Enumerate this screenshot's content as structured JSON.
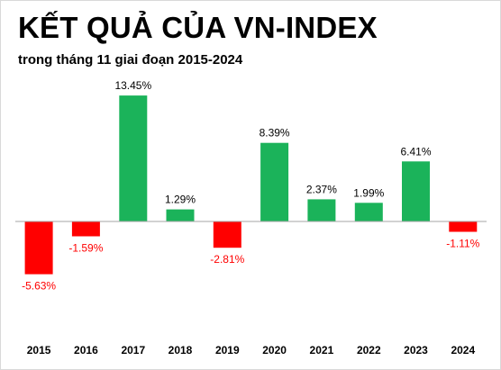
{
  "title": "KẾT QUẢ CỦA VN-INDEX",
  "subtitle": "trong tháng 11 giai đoạn 2015-2024",
  "colors": {
    "positive": "#1bb35a",
    "negative": "#ff0000",
    "axis": "#a6a6a6",
    "label_positive": "#000000",
    "label_negative": "#ff0000"
  },
  "chart_data": {
    "type": "bar",
    "categories": [
      "2015",
      "2016",
      "2017",
      "2018",
      "2019",
      "2020",
      "2021",
      "2022",
      "2023",
      "2024"
    ],
    "values": [
      -5.63,
      -1.59,
      13.45,
      1.29,
      -2.81,
      8.39,
      2.37,
      1.99,
      6.41,
      -1.11
    ],
    "data_labels": [
      "-5.63%",
      "-1.59%",
      "13.45%",
      "1.29%",
      "-2.81%",
      "8.39%",
      "2.37%",
      "1.99%",
      "6.41%",
      "-1.11%"
    ],
    "title": "KẾT QUẢ CỦA VN-INDEX",
    "subtitle": "trong tháng 11 giai đoạn 2015-2024",
    "xlabel": "",
    "ylabel": "",
    "ylim": [
      -6.5,
      14.5
    ],
    "grid": false,
    "legend": "none"
  }
}
